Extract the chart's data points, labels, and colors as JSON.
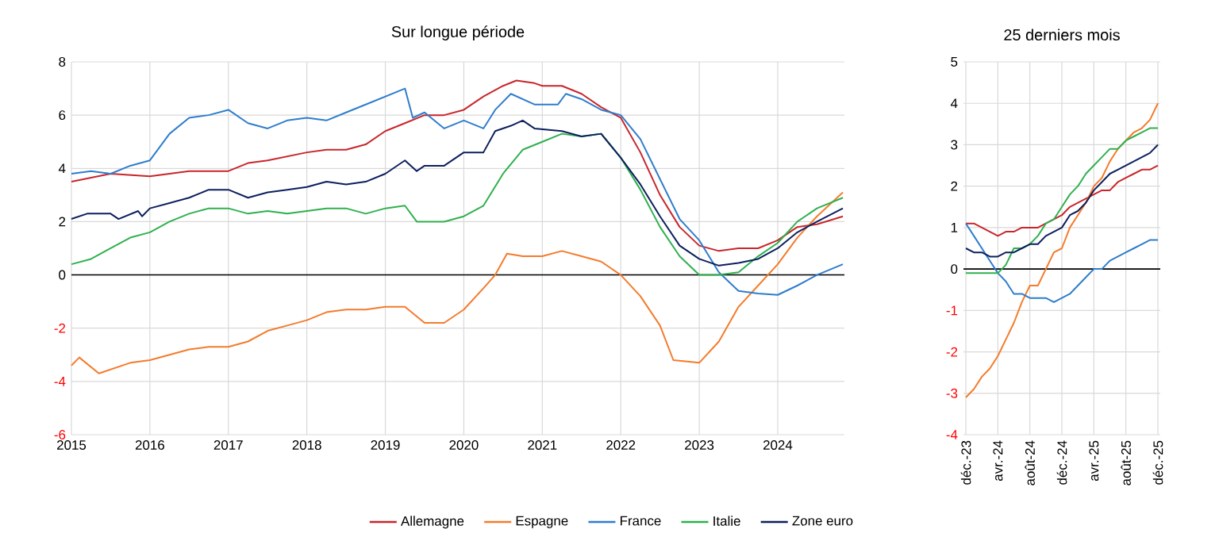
{
  "chart_data": [
    {
      "type": "line",
      "title": "Sur longue période",
      "xlim": [
        2015,
        2024.85
      ],
      "xticks": [
        2015,
        2016,
        2017,
        2018,
        2019,
        2020,
        2021,
        2022,
        2023,
        2024
      ],
      "ylim": [
        -6,
        8
      ],
      "yticks": [
        -6,
        -4,
        -2,
        0,
        2,
        4,
        6,
        8
      ],
      "grid": true,
      "legend": "bottom",
      "ref_lines": [
        {
          "axis": "y",
          "value": 0,
          "color": "#000000"
        }
      ],
      "series": [
        {
          "name": "Allemagne",
          "color": "#c8262b",
          "x": [
            2015,
            2015.5,
            2016,
            2016.5,
            2017,
            2017.25,
            2017.5,
            2018,
            2018.25,
            2018.5,
            2018.75,
            2019,
            2019.25,
            2019.5,
            2019.75,
            2020,
            2020.25,
            2020.5,
            2020.67,
            2020.9,
            2021,
            2021.25,
            2021.5,
            2021.75,
            2022,
            2022.25,
            2022.5,
            2022.75,
            2023,
            2023.25,
            2023.5,
            2023.75,
            2024,
            2024.25,
            2024.5,
            2024.83
          ],
          "values": [
            3.5,
            3.8,
            3.7,
            3.9,
            3.9,
            4.2,
            4.3,
            4.6,
            4.7,
            4.7,
            4.9,
            5.4,
            5.7,
            6.0,
            6.0,
            6.2,
            6.7,
            7.1,
            7.3,
            7.2,
            7.1,
            7.1,
            6.8,
            6.3,
            5.9,
            4.6,
            3.0,
            1.8,
            1.1,
            0.9,
            1.0,
            1.0,
            1.3,
            1.8,
            1.9,
            2.2
          ]
        },
        {
          "name": "Espagne",
          "color": "#f47b2c",
          "x": [
            2015,
            2015.1,
            2015.35,
            2015.75,
            2016,
            2016.25,
            2016.5,
            2016.75,
            2017,
            2017.25,
            2017.5,
            2017.75,
            2018,
            2018.25,
            2018.5,
            2018.75,
            2019,
            2019.25,
            2019.5,
            2019.75,
            2020,
            2020.25,
            2020.4,
            2020.55,
            2020.75,
            2021,
            2021.25,
            2021.5,
            2021.75,
            2022,
            2022.25,
            2022.5,
            2022.67,
            2023,
            2023.25,
            2023.5,
            2023.75,
            2024,
            2024.25,
            2024.5,
            2024.83
          ],
          "values": [
            -3.4,
            -3.1,
            -3.7,
            -3.3,
            -3.2,
            -3.0,
            -2.8,
            -2.7,
            -2.7,
            -2.5,
            -2.1,
            -1.9,
            -1.7,
            -1.4,
            -1.3,
            -1.3,
            -1.2,
            -1.2,
            -1.8,
            -1.8,
            -1.3,
            -0.5,
            0.0,
            0.8,
            0.7,
            0.7,
            0.9,
            0.7,
            0.5,
            0.0,
            -0.8,
            -1.9,
            -3.2,
            -3.3,
            -2.5,
            -1.2,
            -0.4,
            0.4,
            1.4,
            2.2,
            3.1
          ]
        },
        {
          "name": "France",
          "color": "#2e7dcc",
          "x": [
            2015,
            2015.25,
            2015.5,
            2015.75,
            2016,
            2016.25,
            2016.5,
            2016.75,
            2017,
            2017.25,
            2017.5,
            2017.75,
            2018,
            2018.25,
            2018.5,
            2018.75,
            2019,
            2019.25,
            2019.35,
            2019.5,
            2019.75,
            2020,
            2020.25,
            2020.4,
            2020.6,
            2020.9,
            2021.2,
            2021.3,
            2021.5,
            2021.75,
            2022,
            2022.25,
            2022.5,
            2022.75,
            2023,
            2023.25,
            2023.5,
            2023.75,
            2024,
            2024.25,
            2024.5,
            2024.83
          ],
          "values": [
            3.8,
            3.9,
            3.8,
            4.1,
            4.3,
            5.3,
            5.9,
            6.0,
            6.2,
            5.7,
            5.5,
            5.8,
            5.9,
            5.8,
            6.1,
            6.4,
            6.7,
            7.0,
            5.9,
            6.1,
            5.5,
            5.8,
            5.5,
            6.2,
            6.8,
            6.4,
            6.4,
            6.8,
            6.6,
            6.2,
            6.0,
            5.1,
            3.6,
            2.1,
            1.3,
            0.1,
            -0.6,
            -0.7,
            -0.75,
            -0.4,
            0.0,
            0.4
          ]
        },
        {
          "name": "Italie",
          "color": "#2fb04e",
          "x": [
            2015,
            2015.25,
            2015.5,
            2015.75,
            2016,
            2016.25,
            2016.5,
            2016.75,
            2017,
            2017.25,
            2017.5,
            2017.75,
            2018,
            2018.25,
            2018.5,
            2018.75,
            2019,
            2019.25,
            2019.4,
            2019.75,
            2020,
            2020.25,
            2020.5,
            2020.75,
            2021,
            2021.25,
            2021.5,
            2021.75,
            2022,
            2022.25,
            2022.5,
            2022.75,
            2023,
            2023.25,
            2023.5,
            2023.75,
            2024,
            2024.25,
            2024.5,
            2024.83
          ],
          "values": [
            0.4,
            0.6,
            1.0,
            1.4,
            1.6,
            2.0,
            2.3,
            2.5,
            2.5,
            2.3,
            2.4,
            2.3,
            2.4,
            2.5,
            2.5,
            2.3,
            2.5,
            2.6,
            2.0,
            2.0,
            2.2,
            2.6,
            3.8,
            4.7,
            5.0,
            5.3,
            5.2,
            5.3,
            4.4,
            3.2,
            1.8,
            0.7,
            0.0,
            0.0,
            0.1,
            0.7,
            1.2,
            2.0,
            2.5,
            2.9
          ]
        },
        {
          "name": "Zone euro",
          "color": "#0c1f5e",
          "x": [
            2015,
            2015.2,
            2015.5,
            2015.6,
            2015.85,
            2015.9,
            2016,
            2016.25,
            2016.5,
            2016.75,
            2017,
            2017.25,
            2017.5,
            2017.75,
            2018,
            2018.25,
            2018.5,
            2018.75,
            2019,
            2019.25,
            2019.4,
            2019.5,
            2019.75,
            2020,
            2020.25,
            2020.4,
            2020.6,
            2020.75,
            2020.9,
            2021.25,
            2021.5,
            2021.75,
            2022,
            2022.25,
            2022.5,
            2022.75,
            2023,
            2023.25,
            2023.5,
            2023.75,
            2024,
            2024.25,
            2024.5,
            2024.83
          ],
          "values": [
            2.1,
            2.3,
            2.3,
            2.1,
            2.4,
            2.2,
            2.5,
            2.7,
            2.9,
            3.2,
            3.2,
            2.9,
            3.1,
            3.2,
            3.3,
            3.5,
            3.4,
            3.5,
            3.8,
            4.3,
            3.9,
            4.1,
            4.1,
            4.6,
            4.6,
            5.4,
            5.6,
            5.8,
            5.5,
            5.4,
            5.2,
            5.3,
            4.4,
            3.4,
            2.2,
            1.1,
            0.6,
            0.35,
            0.45,
            0.6,
            1.0,
            1.6,
            2.0,
            2.5
          ]
        }
      ]
    },
    {
      "type": "line",
      "title": "25 derniers mois",
      "categories": [
        "déc.-23",
        null,
        null,
        null,
        "avr.-24",
        null,
        null,
        null,
        "août-24",
        null,
        null,
        null,
        "déc.-24",
        null,
        null,
        null,
        "avr.-25",
        null,
        null,
        null,
        "août-25",
        null,
        null,
        null,
        "déc.-25"
      ],
      "ylim": [
        -4,
        5
      ],
      "yticks": [
        -4,
        -3,
        -2,
        -1,
        0,
        1,
        2,
        3,
        4,
        5
      ],
      "grid": true,
      "ref_lines": [
        {
          "axis": "y",
          "value": 0,
          "color": "#000000"
        }
      ],
      "series": [
        {
          "color": "#c8262b",
          "values": [
            1.1,
            1.1,
            1.0,
            0.9,
            0.8,
            0.9,
            0.9,
            1.0,
            1.0,
            1.0,
            1.1,
            1.2,
            1.3,
            1.5,
            1.6,
            1.7,
            1.8,
            1.9,
            1.9,
            2.1,
            2.2,
            2.3,
            2.4,
            2.4,
            2.5
          ]
        },
        {
          "color": "#f47b2c",
          "values": [
            -3.1,
            -2.9,
            -2.6,
            -2.4,
            -2.1,
            -1.7,
            -1.3,
            -0.8,
            -0.4,
            -0.4,
            0.0,
            0.4,
            0.5,
            1.0,
            1.3,
            1.6,
            2.0,
            2.2,
            2.6,
            2.9,
            3.1,
            3.3,
            3.4,
            3.6,
            4.0
          ]
        },
        {
          "color": "#2e7dcc",
          "values": [
            1.1,
            0.8,
            0.5,
            0.2,
            -0.1,
            -0.3,
            -0.6,
            -0.6,
            -0.7,
            -0.7,
            -0.7,
            -0.8,
            -0.7,
            -0.6,
            -0.4,
            -0.2,
            0.0,
            0.0,
            0.2,
            0.3,
            0.4,
            0.5,
            0.6,
            0.7,
            0.7
          ]
        },
        {
          "color": "#2fb04e",
          "values": [
            -0.1,
            -0.1,
            -0.1,
            -0.1,
            -0.1,
            0.1,
            0.5,
            0.5,
            0.6,
            0.8,
            1.1,
            1.2,
            1.5,
            1.8,
            2.0,
            2.3,
            2.5,
            2.7,
            2.9,
            2.9,
            3.1,
            3.2,
            3.3,
            3.4,
            3.4
          ]
        },
        {
          "color": "#0c1f5e",
          "values": [
            0.5,
            0.4,
            0.4,
            0.3,
            0.3,
            0.4,
            0.4,
            0.5,
            0.6,
            0.6,
            0.8,
            0.9,
            1.0,
            1.3,
            1.4,
            1.6,
            1.9,
            2.1,
            2.3,
            2.4,
            2.5,
            2.6,
            2.7,
            2.8,
            3.0
          ]
        }
      ]
    }
  ]
}
